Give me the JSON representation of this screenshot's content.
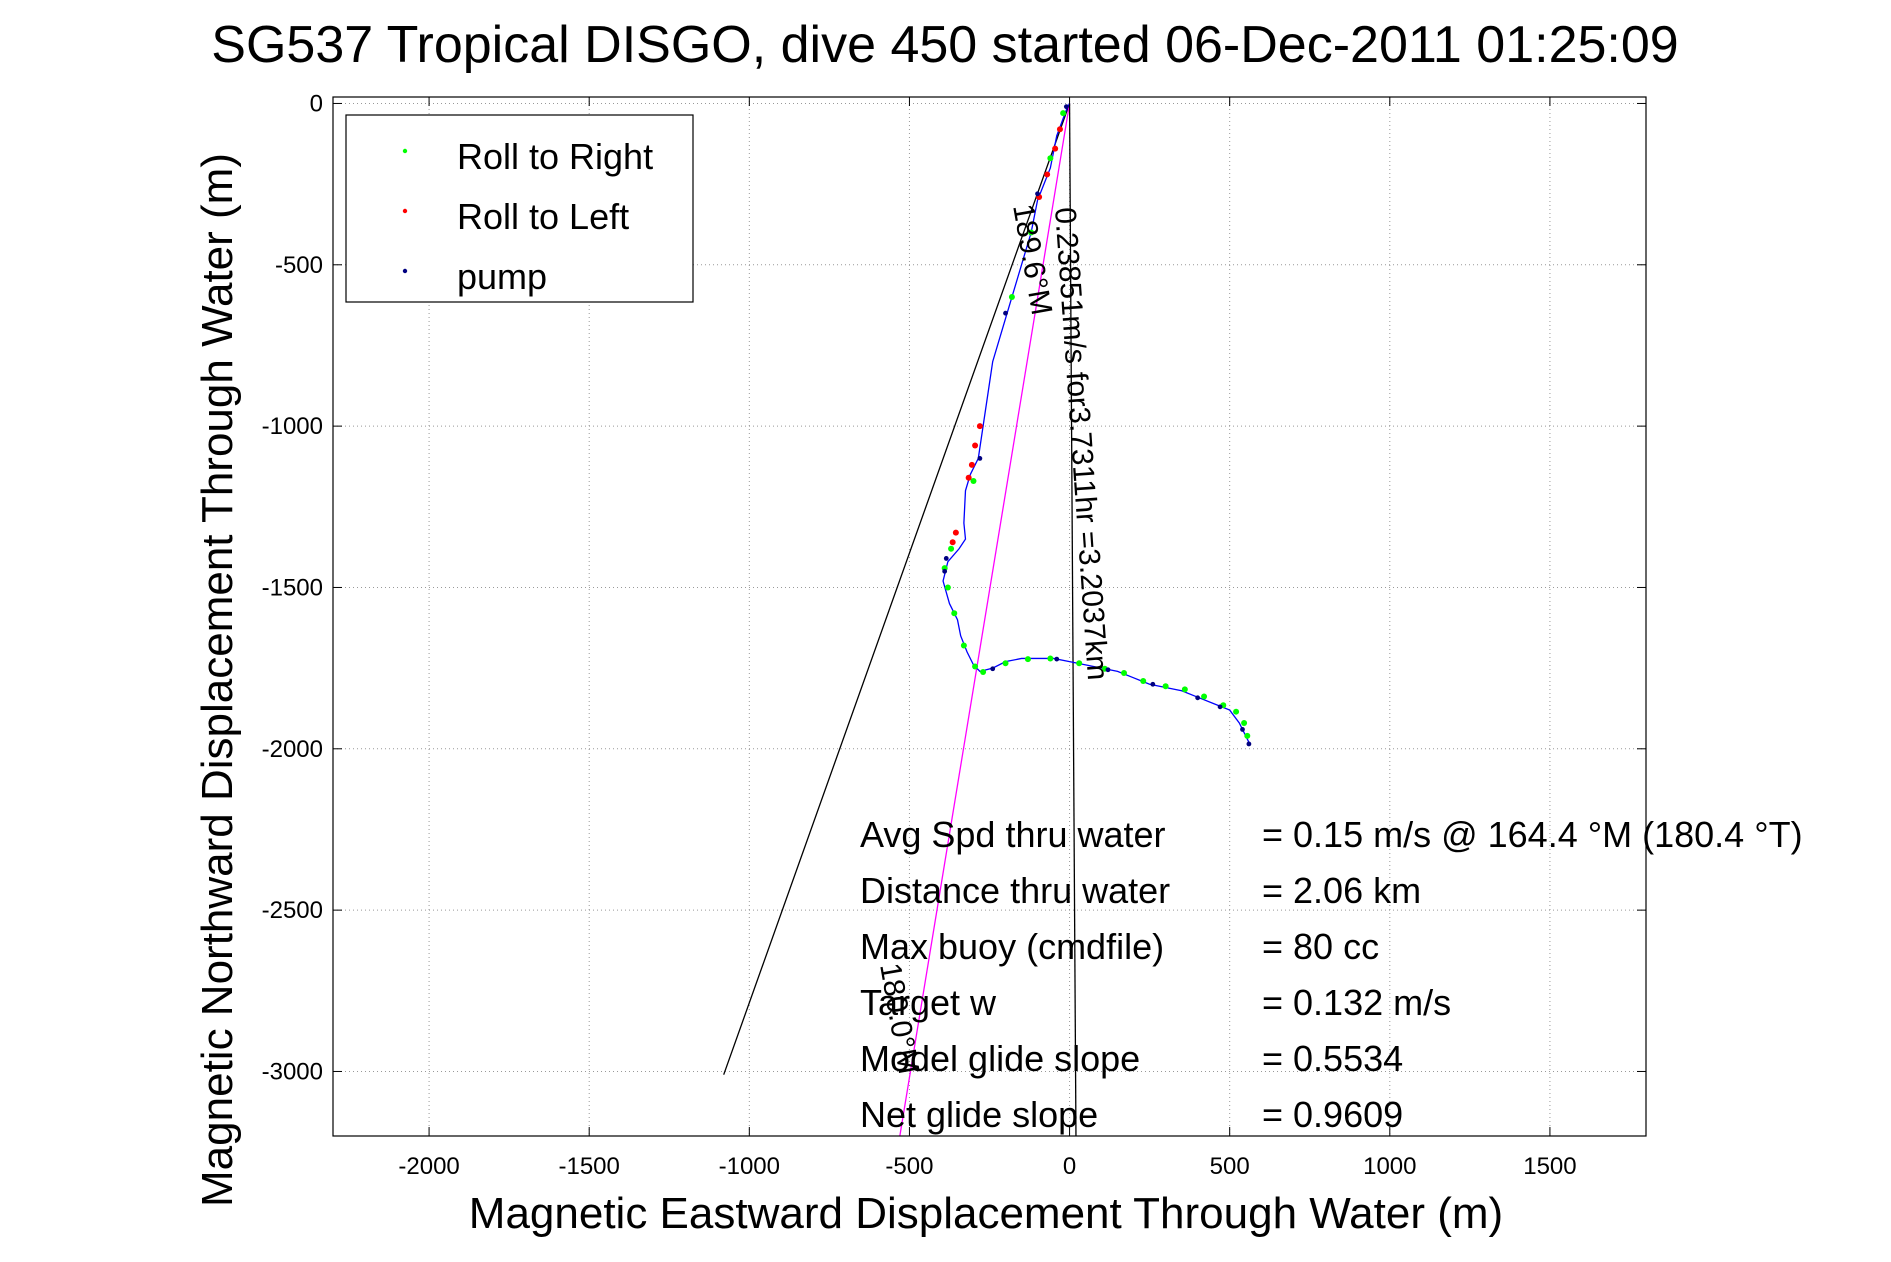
{
  "chart_data": {
    "type": "scatter",
    "title": "SG537 Tropical DISGO, dive 450 started 06-Dec-2011 01:25:09",
    "xlabel": "Magnetic Eastward Displacement Through Water (m)",
    "ylabel": "Magnetic Northward Displacement Through Water (m)",
    "xlim": [
      -2300,
      1800
    ],
    "ylim": [
      -3200,
      20
    ],
    "xticks": [
      -2000,
      -1500,
      -1000,
      -500,
      0,
      500,
      1000,
      1500
    ],
    "yticks": [
      0,
      -500,
      -1000,
      -1500,
      -2000,
      -2500,
      -3000
    ],
    "grid": true,
    "legend": {
      "placement": "top-left",
      "entries": [
        {
          "label": "Roll to Right",
          "color": "#00ff00"
        },
        {
          "label": "Roll to Left",
          "color": "#ff0000"
        },
        {
          "label": "pump",
          "color": "#000080"
        }
      ]
    },
    "track": {
      "color": "#0000ff",
      "x": [
        0,
        -10,
        -25,
        -40,
        -50,
        -60,
        -80,
        -100,
        -120,
        -150,
        -180,
        -210,
        -240,
        -255,
        -270,
        -285,
        -310,
        -325,
        -330,
        -325,
        -345,
        -380,
        -395,
        -375,
        -350,
        -340,
        -320,
        -300,
        -280,
        -240,
        -200,
        -150,
        -100,
        -50,
        0,
        50,
        100,
        150,
        200,
        250,
        300,
        350,
        400,
        450,
        500,
        530,
        560
      ],
      "y": [
        0,
        -20,
        -60,
        -100,
        -150,
        -200,
        -250,
        -300,
        -400,
        -500,
        -600,
        -700,
        -800,
        -900,
        -1000,
        -1100,
        -1150,
        -1200,
        -1300,
        -1350,
        -1380,
        -1420,
        -1480,
        -1550,
        -1600,
        -1650,
        -1700,
        -1740,
        -1760,
        -1750,
        -1730,
        -1720,
        -1720,
        -1720,
        -1730,
        -1740,
        -1750,
        -1760,
        -1780,
        -1800,
        -1810,
        -1820,
        -1840,
        -1860,
        -1880,
        -1920,
        -1980
      ]
    },
    "markers": {
      "roll_right": {
        "color": "#00ff00",
        "x": [
          -20,
          -60,
          -120,
          -180,
          -300,
          -370,
          -390,
          -380,
          -360,
          -330,
          -295,
          -270,
          -200,
          -130,
          -60,
          30,
          110,
          170,
          230,
          300,
          360,
          420,
          480,
          520,
          545,
          555
        ],
        "y": [
          -30,
          -170,
          -400,
          -600,
          -1170,
          -1380,
          -1440,
          -1500,
          -1580,
          -1680,
          -1745,
          -1762,
          -1735,
          -1722,
          -1720,
          -1735,
          -1752,
          -1765,
          -1790,
          -1806,
          -1816,
          -1838,
          -1865,
          -1885,
          -1920,
          -1960
        ]
      },
      "roll_left": {
        "color": "#ff0000",
        "x": [
          -30,
          -45,
          -70,
          -95,
          -280,
          -295,
          -305,
          -315,
          -355,
          -365
        ],
        "y": [
          -80,
          -140,
          -220,
          -290,
          -1000,
          -1060,
          -1120,
          -1160,
          -1330,
          -1360
        ]
      },
      "pump": {
        "color": "#000080",
        "x": [
          -10,
          -100,
          -200,
          -280,
          -385,
          -390,
          -240,
          -40,
          120,
          260,
          400,
          470,
          540,
          560
        ],
        "y": [
          -10,
          -280,
          -650,
          -1100,
          -1410,
          -1450,
          -1752,
          -1722,
          -1755,
          -1800,
          -1842,
          -1870,
          -1940,
          -1985
        ]
      }
    },
    "lines": [
      {
        "name": "net",
        "color": "#000000",
        "x": [
          0,
          -1080
        ],
        "y": [
          0,
          -3010
        ]
      },
      {
        "name": "current",
        "color": "#ff00ff",
        "x": [
          0,
          -530
        ],
        "y": [
          0,
          -3250
        ]
      },
      {
        "name": "vertical",
        "color": "#000000",
        "x": [
          0,
          20
        ],
        "y": [
          0,
          -3200
        ]
      }
    ],
    "annotations": [
      {
        "text": "0.23851m/s for3.7311hr =3.2037km",
        "x": -20,
        "y": -330,
        "rotation": 86
      },
      {
        "text": "189.6°M",
        "x": -105,
        "y": -330,
        "rotation": 80
      },
      {
        "text": "180.0°M",
        "x": -590,
        "y": -2380,
        "rotation": 80
      }
    ],
    "stats": [
      {
        "label": "Avg Spd thru water",
        "value": "=  0.15 m/s @ 164.4 °M (180.4 °T)"
      },
      {
        "label": "Distance thru water",
        "value": "=  2.06 km"
      },
      {
        "label": "Max buoy (cmdfile)",
        "value": "= 80 cc"
      },
      {
        "label": "Target w",
        "value": "= 0.132 m/s"
      },
      {
        "label": "Model glide slope",
        "value": "= 0.5534"
      },
      {
        "label": "Net glide slope",
        "value": "= 0.9609"
      }
    ]
  }
}
